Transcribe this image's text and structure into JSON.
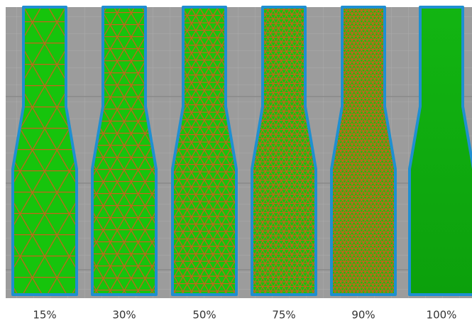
{
  "samples": [
    {
      "label": "15%"
    },
    {
      "label": "30%"
    },
    {
      "label": "50%"
    },
    {
      "label": "75%"
    },
    {
      "label": "90%"
    },
    {
      "label": "100%"
    }
  ]
}
